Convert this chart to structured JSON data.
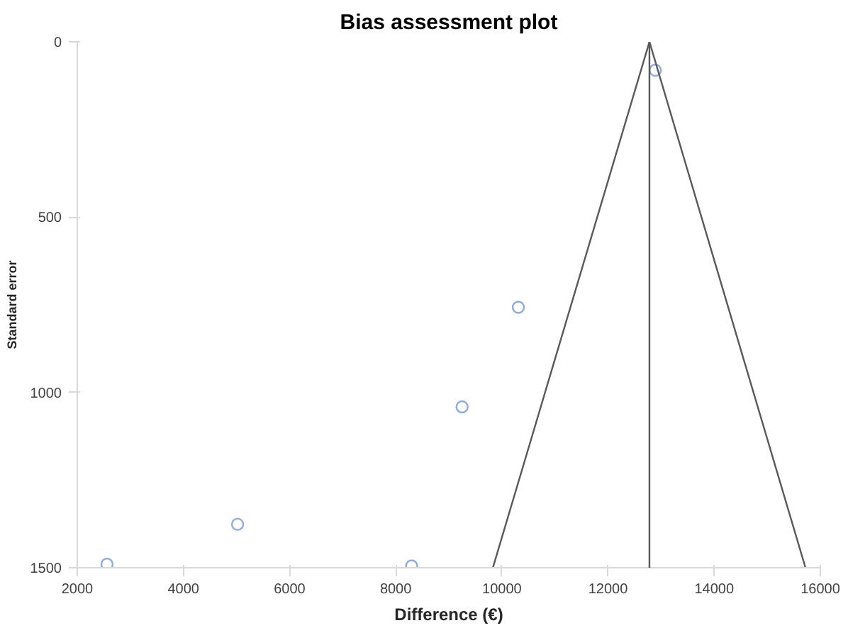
{
  "chart_data": {
    "type": "scatter",
    "title": "Bias assessment plot",
    "xlabel": "Difference (€)",
    "ylabel": "Standard error",
    "xlim": [
      2000,
      16000
    ],
    "xticks": [
      2000,
      4000,
      6000,
      8000,
      10000,
      12000,
      14000,
      16000
    ],
    "ylim": [
      1500,
      0
    ],
    "yticks": [
      0,
      500,
      1000,
      1500
    ],
    "grid": false,
    "marker": "circle",
    "series": [
      {
        "color": "#8faadc",
        "x": [
          2560,
          5020,
          8300,
          9250,
          10310,
          12890
        ],
        "values": [
          1490,
          1376,
          1495,
          1041,
          757,
          81
        ]
      },
      {
        "type": "line",
        "color": "#595959",
        "marker": "none",
        "line_style": "solid",
        "x": [
          9830,
          12780,
          15720
        ],
        "values": [
          1500,
          0,
          1500
        ]
      }
    ],
    "ref_lines": [
      {
        "axis": "x",
        "value": 12780,
        "label": null,
        "color": "#595959",
        "line_style": "solid"
      }
    ]
  }
}
